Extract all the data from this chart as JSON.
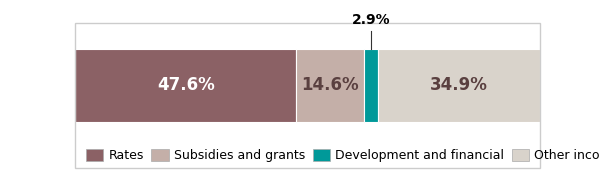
{
  "segments": [
    {
      "label": "Rates",
      "value": 47.6,
      "color": "#8B6165",
      "text_color": "#ffffff",
      "text_inside": true
    },
    {
      "label": "Subsidies and grants",
      "value": 14.6,
      "color": "#C4AFA8",
      "text_color": "#5a4040",
      "text_inside": true
    },
    {
      "label": "Development and financial",
      "value": 2.9,
      "color": "#009999",
      "text_color": "#000000",
      "text_inside": false
    },
    {
      "label": "Other income",
      "value": 34.9,
      "color": "#D9D3CB",
      "text_color": "#5a4040",
      "text_inside": true
    }
  ],
  "total": 100,
  "background_color": "#ffffff",
  "border_color": "#cccccc",
  "annotation_label": "2.9%",
  "annotation_fontsize": 10,
  "inside_fontsize": 12,
  "legend_fontsize": 9
}
